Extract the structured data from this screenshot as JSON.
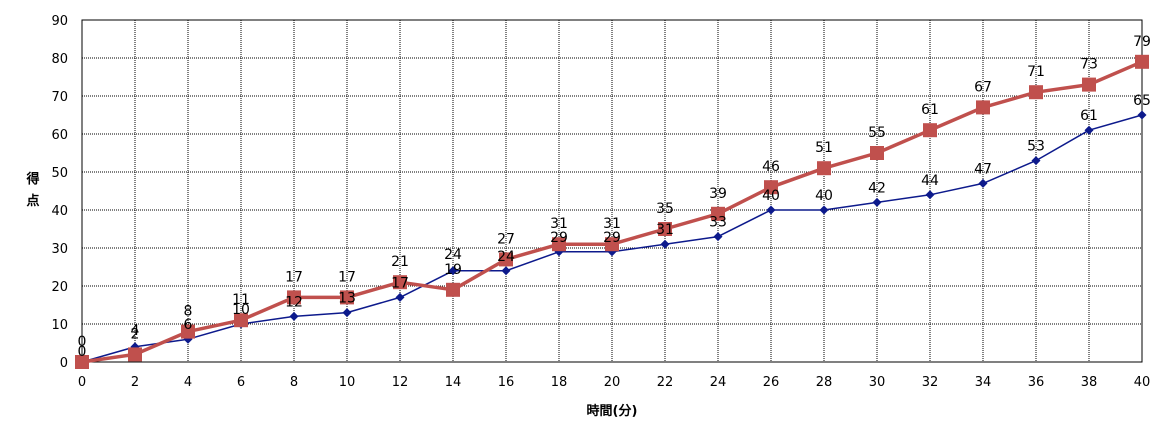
{
  "chart_data": {
    "type": "line",
    "title": "",
    "xlabel": "時間(分)",
    "ylabel": "得点",
    "x": [
      0,
      2,
      4,
      6,
      8,
      10,
      12,
      14,
      16,
      18,
      20,
      22,
      24,
      26,
      28,
      30,
      32,
      34,
      36,
      38,
      40
    ],
    "xlim": [
      0,
      40
    ],
    "ylim": [
      0,
      90
    ],
    "y_ticks": [
      0,
      10,
      20,
      30,
      40,
      50,
      60,
      70,
      80,
      90
    ],
    "grid": true,
    "legend": "none",
    "series": [
      {
        "values": [
          0,
          4,
          6,
          10,
          12,
          13,
          17,
          24,
          24,
          29,
          29,
          31,
          33,
          40,
          40,
          42,
          44,
          47,
          53,
          61,
          65
        ],
        "color": "#0d1a8c",
        "marker": "diamond"
      },
      {
        "values": [
          0,
          2,
          8,
          11,
          17,
          17,
          21,
          19,
          27,
          31,
          31,
          35,
          39,
          46,
          51,
          55,
          61,
          67,
          71,
          73,
          79
        ],
        "color": "#c0504d",
        "marker": "square"
      }
    ]
  }
}
